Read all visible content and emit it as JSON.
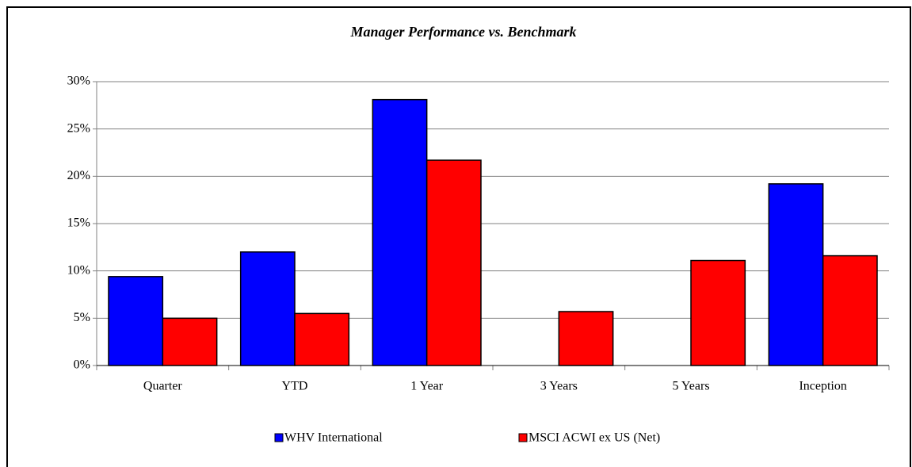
{
  "chart_data": {
    "type": "bar",
    "title": "Manager Performance vs. Benchmark",
    "categories": [
      "Quarter",
      "YTD",
      "1 Year",
      "3 Years",
      "5 Years",
      "Inception"
    ],
    "series": [
      {
        "name": "WHV International",
        "color": "#0000ff",
        "values": [
          9.4,
          12.0,
          28.1,
          null,
          null,
          19.2
        ]
      },
      {
        "name": "MSCI ACWI ex US (Net)",
        "color": "#ff0000",
        "values": [
          5.0,
          5.5,
          21.7,
          5.7,
          11.1,
          11.6
        ]
      }
    ],
    "ylim": [
      0,
      30
    ],
    "yticks": [
      {
        "value": 0,
        "label": "0%"
      },
      {
        "value": 5,
        "label": "5%"
      },
      {
        "value": 10,
        "label": "10%"
      },
      {
        "value": 15,
        "label": "15%"
      },
      {
        "value": 20,
        "label": "20%"
      },
      {
        "value": 25,
        "label": "25%"
      },
      {
        "value": 30,
        "label": "30%"
      }
    ],
    "grid": true
  }
}
